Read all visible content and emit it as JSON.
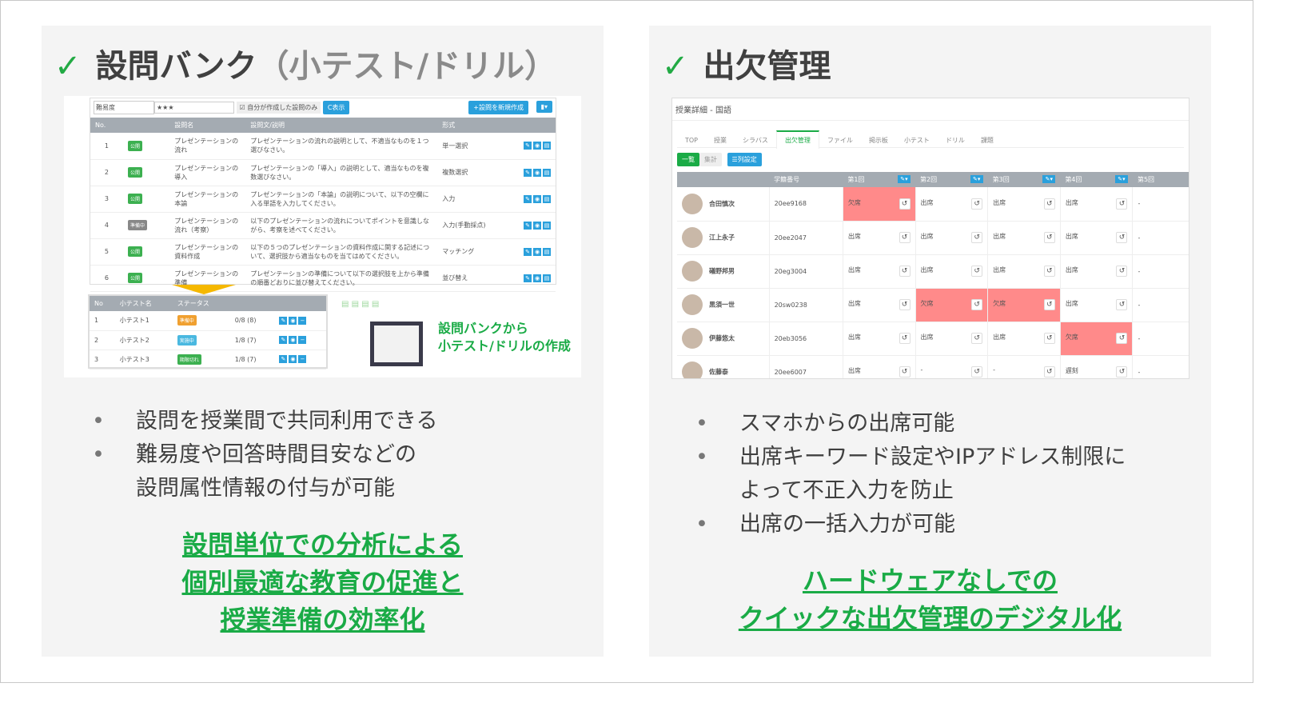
{
  "left": {
    "title": "設問バンク",
    "title_sub": "（小テスト/ドリル）",
    "toolbar": {
      "difficulty": "難易度",
      "stars": "★★★",
      "mine_only": "自分が作成した設問のみ",
      "show": "C表示",
      "create": "+設問を新規作成"
    },
    "columns": [
      "No.",
      "",
      "設問名",
      "設問文/説明",
      "形式"
    ],
    "rows": [
      {
        "no": "1",
        "status": "公開",
        "name": "プレゼンテーションの流れ",
        "text": "プレゼンテーションの流れの説明として、不適当なものを１つ選びなさい。",
        "type": "単一選択"
      },
      {
        "no": "2",
        "status": "公開",
        "name": "プレゼンテーションの導入",
        "text": "プレゼンテーションの「導入」の説明として、適当なものを複数選びなさい。",
        "type": "複数選択"
      },
      {
        "no": "3",
        "status": "公開",
        "name": "プレゼンテーションの本論",
        "text": "プレゼンテーションの「本論」の説明について、以下の空欄に入る単語を入力してください。",
        "type": "入力"
      },
      {
        "no": "4",
        "status": "準備中",
        "name": "プレゼンテーションの流れ（考察）",
        "text": "以下のプレゼンテーションの流れについてポイントを意識しながら、考察を述べてください。",
        "type": "入力(手動採点)"
      },
      {
        "no": "5",
        "status": "公開",
        "name": "プレゼンテーションの資料作成",
        "text": "以下の５つのプレゼンテーションの資料作成に関する記述について、選択肢から適当なものを当てはめてください。",
        "type": "マッチング"
      },
      {
        "no": "6",
        "status": "公開",
        "name": "プレゼンテーションの準備",
        "text": "プレゼンテーションの準備について以下の選択肢を上から準備の順番どおりに並び替えてください。",
        "type": "並び替え"
      }
    ],
    "quiz_columns": [
      "No",
      "小テスト名",
      "ステータス"
    ],
    "quizzes": [
      {
        "no": "1",
        "name": "小テスト1",
        "status": "準備中",
        "color": "#f0a030",
        "count": "0/8 (8)"
      },
      {
        "no": "2",
        "name": "小テスト2",
        "status": "実施中",
        "color": "#4ab8e0",
        "count": "1/8 (7)"
      },
      {
        "no": "3",
        "name": "小テスト3",
        "status": "期限切れ",
        "color": "#3cb050",
        "count": "1/8 (7)"
      }
    ],
    "caption": [
      "設問バンクから",
      "小テスト/ドリルの作成"
    ],
    "bullets": [
      "設問を授業間で共同利用できる",
      "難易度や回答時間目安などの",
      "設問属性情報の付与が可能"
    ],
    "highlight": [
      "設問単位での分析による",
      "個別最適な教育の促進と",
      "授業準備の効率化"
    ]
  },
  "right": {
    "title": "出欠管理",
    "page_title": "授業詳細 - 国語",
    "tabs": [
      "TOP",
      "授業",
      "シラバス",
      "出欠管理",
      "ファイル",
      "掲示板",
      "小テスト",
      "ドリル",
      "課題"
    ],
    "buttons": {
      "list": "一覧",
      "summary": "集計",
      "columns": "☰列設定"
    },
    "columns": [
      "",
      "学籍番号",
      "第1回",
      "第2回",
      "第3回",
      "第4回",
      "第5回"
    ],
    "students": [
      {
        "name": "合田慎次",
        "id": "20ee9168",
        "att": [
          "欠席",
          "出席",
          "出席",
          "出席",
          "-"
        ]
      },
      {
        "name": "江上永子",
        "id": "20ee2047",
        "att": [
          "出席",
          "出席",
          "出席",
          "出席",
          "-"
        ]
      },
      {
        "name": "礒野邦男",
        "id": "20eg3004",
        "att": [
          "出席",
          "出席",
          "出席",
          "出席",
          "-"
        ]
      },
      {
        "name": "黒須一世",
        "id": "20sw0238",
        "att": [
          "出席",
          "欠席",
          "欠席",
          "出席",
          "-"
        ]
      },
      {
        "name": "伊藤悠太",
        "id": "20eb3056",
        "att": [
          "出席",
          "出席",
          "出席",
          "欠席",
          "-"
        ]
      },
      {
        "name": "佐藤泰",
        "id": "20ee6007",
        "att": [
          "出席",
          "-",
          "-",
          "遅刻",
          "-"
        ]
      }
    ],
    "bullets": [
      "スマホからの出席可能",
      "出席キーワード設定やIPアドレス制限に",
      "よって不正入力を防止",
      "出席の一括入力が可能"
    ],
    "highlight": [
      "ハードウェアなしでの",
      "クイックな出欠管理のデジタル化"
    ]
  },
  "colors": {
    "green": "#1aab46",
    "absent": "#ff8a8a",
    "blue": "#2aa0dc"
  }
}
